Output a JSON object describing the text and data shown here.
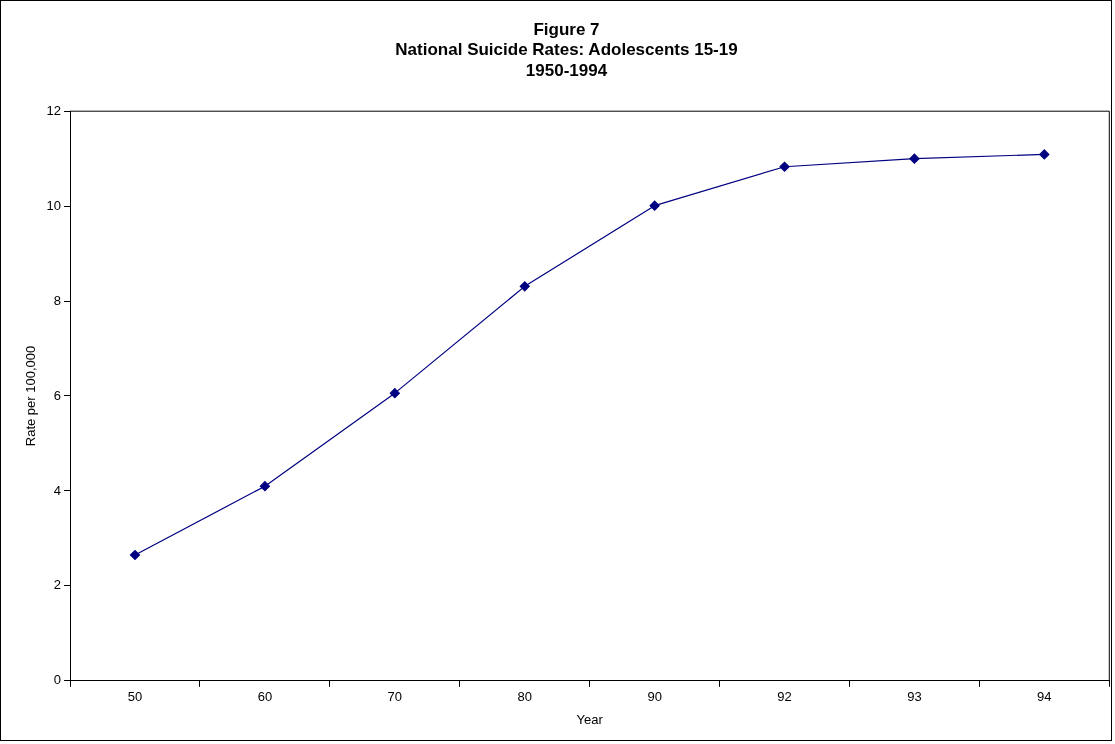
{
  "chart_data": {
    "type": "line",
    "title": "Figure 7\nNational Suicide Rates: Adolescents 15-19\n1950-1994",
    "xlabel": "Year",
    "ylabel": "Rate per 100,000",
    "categories": [
      "50",
      "60",
      "70",
      "80",
      "90",
      "92",
      "93",
      "94"
    ],
    "series": [
      {
        "color": "#000080",
        "values": [
          2.65,
          4.1,
          6.06,
          8.31,
          10.01,
          10.83,
          11.0,
          11.09
        ]
      }
    ],
    "ylim": [
      0,
      12
    ],
    "yticks": [
      0,
      2,
      4,
      6,
      8,
      10,
      12
    ],
    "grid": false,
    "legend": false,
    "marker": "diamond",
    "line_style": "solid"
  }
}
